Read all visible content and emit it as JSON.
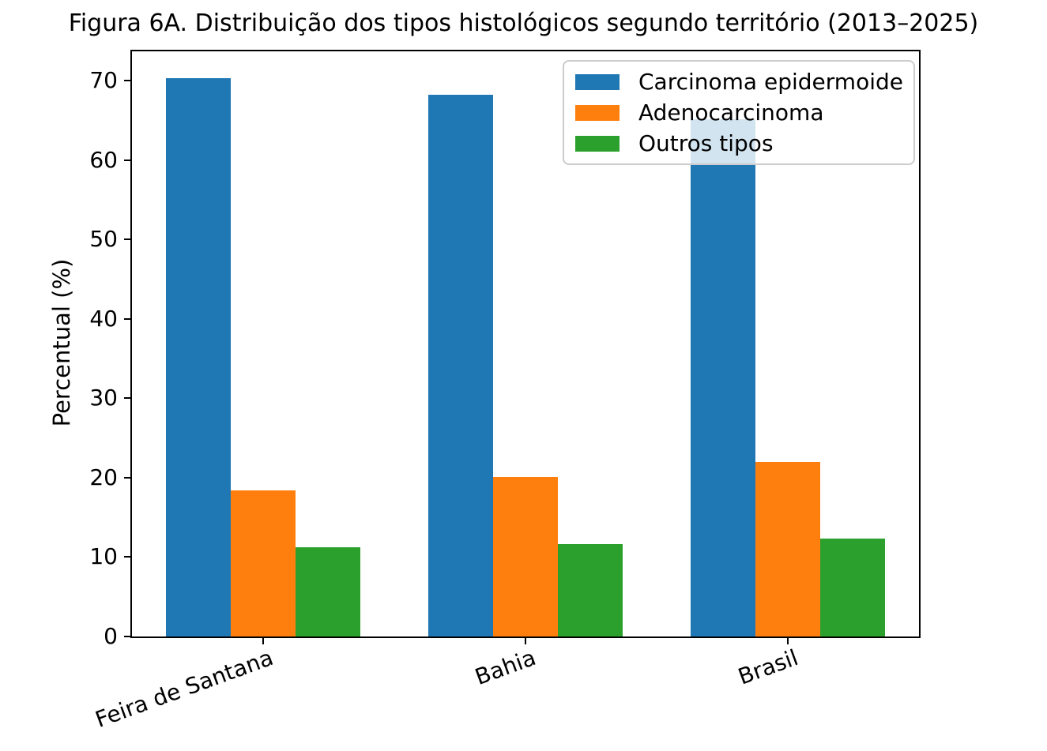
{
  "chart_data": {
    "type": "bar",
    "title": "Figura 6A. Distribuição dos tipos histológicos segundo território (2013–2025)",
    "ylabel": "Percentual (%)",
    "xlabel": "",
    "categories": [
      "Feira de Santana",
      "Bahia",
      "Brasil"
    ],
    "series": [
      {
        "name": "Carcinoma epidermoide",
        "color": "#1f77b4",
        "values": [
          70.3,
          68.2,
          65.1
        ]
      },
      {
        "name": "Adenocarcinoma",
        "color": "#ff7f0e",
        "values": [
          18.4,
          20.1,
          22.0
        ]
      },
      {
        "name": "Outros tipos",
        "color": "#2ca02c",
        "values": [
          11.2,
          11.6,
          12.3
        ]
      }
    ],
    "yticks": [
      0,
      10,
      20,
      30,
      40,
      50,
      60,
      70
    ],
    "ylim": [
      0,
      73.7
    ],
    "grid": false,
    "legend_position": "upper right",
    "legend_background": "rgba(255,255,255,0.8)",
    "xtick_label_rotation_deg": 20
  }
}
